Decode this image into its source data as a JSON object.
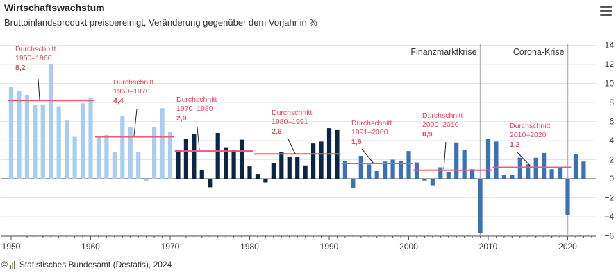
{
  "header": {
    "title": "Wirtschaftswachstum",
    "subtitle": "Bruttoinlandsprodukt preisbereinigt, Veränderung gegenüber dem Vorjahr in %",
    "menu_icon": "hamburger-menu-icon"
  },
  "footer": {
    "copyright": "©",
    "source": "Statistisches Bundesamt (Destatis), 2024",
    "logo_icon": "destatis-logo-icon"
  },
  "colors": {
    "early": "#a9cdf2",
    "middle": "#0b2645",
    "recent": "#3b72b5",
    "average_line": "#f05a6e",
    "annotation_text": "#e8475d",
    "event_line": "#b5b5b5"
  },
  "chart_data": {
    "type": "bar",
    "title": "Wirtschaftswachstum",
    "subtitle": "Bruttoinlandsprodukt preisbereinigt, Veränderung gegenüber dem Vorjahr in %",
    "ylim": [
      -6,
      14
    ],
    "yticks": [
      14,
      12,
      10,
      8,
      6,
      4,
      2,
      0,
      -2,
      -4,
      -6
    ],
    "xticks": [
      1950,
      1960,
      1970,
      1980,
      1990,
      2000,
      2010,
      2020
    ],
    "grid": true,
    "series": [
      {
        "years": [
          1950,
          1951,
          1952,
          1953,
          1954,
          1955,
          1956,
          1957,
          1958,
          1959,
          1960,
          1961,
          1962,
          1963,
          1964,
          1965,
          1966,
          1967,
          1968,
          1969,
          1970
        ],
        "values": [
          9.6,
          9.2,
          8.8,
          7.7,
          7.8,
          12.0,
          7.6,
          6.1,
          4.4,
          7.9,
          8.5,
          4.5,
          4.6,
          2.8,
          6.6,
          5.4,
          2.8,
          -0.3,
          5.4,
          7.4,
          4.9
        ],
        "color": "#a9cdf2"
      },
      {
        "years": [
          1971,
          1972,
          1973,
          1974,
          1975,
          1976,
          1977,
          1978,
          1979,
          1980,
          1981,
          1982,
          1983,
          1984,
          1985,
          1986,
          1987,
          1988,
          1989,
          1990,
          1991
        ],
        "values": [
          3.0,
          4.2,
          4.7,
          0.9,
          -0.9,
          4.8,
          3.3,
          3.0,
          4.1,
          1.3,
          0.5,
          -0.4,
          1.6,
          2.8,
          2.3,
          2.3,
          1.4,
          3.7,
          3.9,
          5.3,
          5.1
        ],
        "color": "#0b2645"
      },
      {
        "years": [
          1992,
          1993,
          1994,
          1995,
          1996,
          1997,
          1998,
          1999,
          2000,
          2001,
          2002,
          2003,
          2004,
          2005,
          2006,
          2007,
          2008,
          2009,
          2010,
          2011,
          2012,
          2013,
          2014,
          2015,
          2016,
          2017,
          2018,
          2019,
          2020,
          2021,
          2022
        ],
        "values": [
          1.9,
          -1.0,
          2.4,
          1.5,
          0.8,
          1.8,
          2.0,
          1.9,
          2.9,
          1.7,
          -0.2,
          -0.7,
          1.2,
          0.7,
          3.8,
          3.0,
          1.0,
          -5.7,
          4.2,
          3.9,
          0.4,
          0.4,
          2.2,
          1.5,
          2.2,
          2.7,
          1.0,
          1.1,
          -3.8,
          2.6,
          1.8
        ],
        "color": "#3b72b5"
      }
    ],
    "averages": [
      {
        "label": "Durchschnitt",
        "period": "1950–1960",
        "value_label": "8,2",
        "value": 8.2,
        "x_start": 1950,
        "x_end": 1960
      },
      {
        "label": "Durchschnitt",
        "period": "1960–1970",
        "value_label": "4,4",
        "value": 4.4,
        "x_start": 1961,
        "x_end": 1970
      },
      {
        "label": "Durchschnitt",
        "period": "1970–1980",
        "value_label": "2,9",
        "value": 2.9,
        "x_start": 1971,
        "x_end": 1980
      },
      {
        "label": "Durchschnitt",
        "period": "1980–1991",
        "value_label": "2,6",
        "value": 2.6,
        "x_start": 1981,
        "x_end": 1991
      },
      {
        "label": "Durchschnitt",
        "period": "1991–2000",
        "value_label": "1,6",
        "value": 1.6,
        "x_start": 1992,
        "x_end": 2000
      },
      {
        "label": "Durchschnitt",
        "period": "2000–2010",
        "value_label": "0,9",
        "value": 0.9,
        "x_start": 2001,
        "x_end": 2010
      },
      {
        "label": "Durchschnitt",
        "period": "2010–2020",
        "value_label": "1,2",
        "value": 1.2,
        "x_start": 2011,
        "x_end": 2020
      }
    ],
    "events": [
      {
        "label": "Finanzmarktkrise",
        "year": 2009
      },
      {
        "label": "Corona-Krise",
        "year": 2020
      }
    ]
  }
}
